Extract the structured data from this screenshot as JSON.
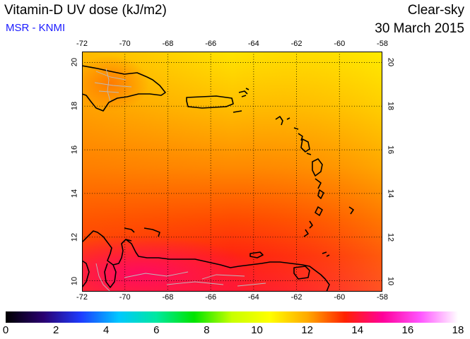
{
  "header": {
    "title": "Vitamin-D UV dose (kJ/m2)",
    "credit": "MSR - KNMI",
    "condition": "Clear-sky",
    "date": "30 March 2015"
  },
  "map": {
    "lon_ticks": [
      "-72",
      "-70",
      "-68",
      "-66",
      "-64",
      "-62",
      "-60",
      "-58"
    ],
    "lat_ticks": [
      "20",
      "18",
      "16",
      "14",
      "12",
      "10"
    ],
    "lon_range": [
      -72,
      -58
    ],
    "lat_range": [
      9.5,
      20.5
    ],
    "coastline_color": "#000000",
    "border_color": "#bbbbbb",
    "grid": "dotted"
  },
  "colorbar": {
    "labels": [
      "0",
      "2",
      "4",
      "6",
      "8",
      "10",
      "12",
      "14",
      "16",
      "18"
    ],
    "range": [
      0,
      18
    ],
    "stops": [
      "#000000",
      "#2a0070",
      "#1e3cff",
      "#00c8ff",
      "#00e8a0",
      "#00e400",
      "#c8ff00",
      "#ffff00",
      "#ffaa00",
      "#ff2200",
      "#ff0099",
      "#ff55ff",
      "#ffffff"
    ]
  }
}
